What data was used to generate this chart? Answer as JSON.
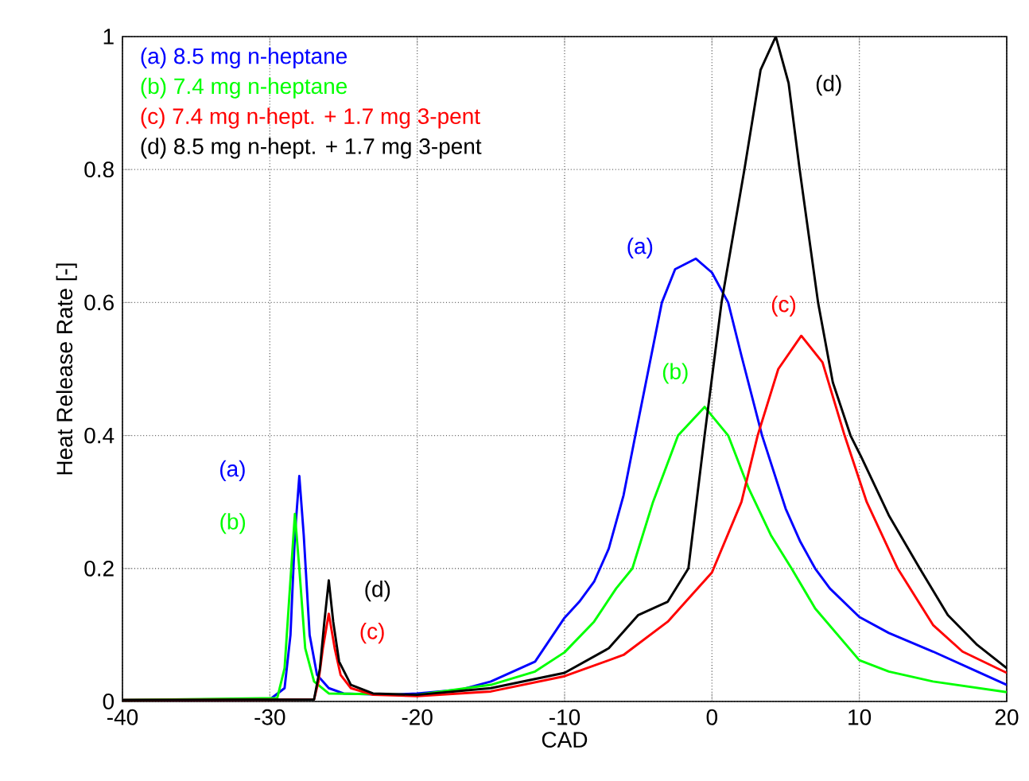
{
  "chart_data": {
    "type": "line",
    "xlabel": "CAD",
    "ylabel": "Heat Release Rate [-]",
    "xlim": [
      -40,
      20
    ],
    "xticks": [
      -40,
      -30,
      -20,
      -10,
      0,
      10,
      20
    ],
    "ylim": [
      0,
      1
    ],
    "yticks": [
      0,
      0.2,
      0.4,
      0.6,
      0.8,
      1
    ],
    "grid": true,
    "legend": "top left",
    "line_style": "solid",
    "marker": "none",
    "series": [
      {
        "name": "(a) 8.5 mg n-heptane",
        "color": "#0000ff",
        "x": [
          -40,
          -30,
          -29,
          -28.6,
          -28.3,
          -28,
          -27.7,
          -27.3,
          -26.8,
          -26,
          -25,
          -22,
          -20,
          -17,
          -15,
          -12,
          -10,
          -9,
          -8,
          -7,
          -6,
          -5.2,
          -4.3,
          -3.4,
          -2.5,
          -1.1,
          0,
          1.1,
          2,
          3.4,
          5,
          6,
          7,
          8,
          10,
          12,
          15,
          18,
          20
        ],
        "values": [
          0.002,
          0.003,
          0.02,
          0.1,
          0.25,
          0.339,
          0.25,
          0.1,
          0.04,
          0.02,
          0.012,
          0.01,
          0.012,
          0.018,
          0.03,
          0.06,
          0.126,
          0.15,
          0.18,
          0.23,
          0.31,
          0.4,
          0.5,
          0.6,
          0.65,
          0.666,
          0.645,
          0.6,
          0.52,
          0.4,
          0.29,
          0.24,
          0.2,
          0.17,
          0.127,
          0.103,
          0.075,
          0.045,
          0.025
        ]
      },
      {
        "name": "(b) 7.4 mg n-heptane",
        "color": "#00ff00",
        "x": [
          -40,
          -29.5,
          -29,
          -28.7,
          -28.3,
          -28,
          -27.6,
          -27,
          -26,
          -20,
          -15,
          -12,
          -10,
          -8,
          -6.5,
          -5.4,
          -4,
          -2.3,
          -0.5,
          1.1,
          2.5,
          4,
          5.4,
          7,
          10,
          12,
          15,
          20
        ],
        "values": [
          0.002,
          0.005,
          0.05,
          0.15,
          0.282,
          0.2,
          0.08,
          0.03,
          0.012,
          0.01,
          0.025,
          0.045,
          0.074,
          0.12,
          0.17,
          0.2,
          0.3,
          0.4,
          0.443,
          0.4,
          0.32,
          0.25,
          0.2,
          0.14,
          0.062,
          0.045,
          0.03,
          0.014
        ]
      },
      {
        "name": "(c) 7.4 mg n-hept. + 1.7 mg 3-pent",
        "color": "#ff0000",
        "x": [
          -40,
          -27,
          -26.7,
          -26.4,
          -26,
          -25.6,
          -25.2,
          -24.5,
          -23,
          -20,
          -15,
          -10,
          -6,
          -3,
          0,
          2,
          3.1,
          4.5,
          6.06,
          7.5,
          9,
          10.5,
          12.6,
          15,
          17,
          20
        ],
        "values": [
          0.002,
          0.003,
          0.03,
          0.08,
          0.132,
          0.08,
          0.04,
          0.02,
          0.01,
          0.008,
          0.015,
          0.038,
          0.07,
          0.12,
          0.194,
          0.3,
          0.4,
          0.5,
          0.55,
          0.51,
          0.4,
          0.3,
          0.2,
          0.115,
          0.075,
          0.043
        ]
      },
      {
        "name": "(d) 8.5 mg n-hept. + 1.7 mg 3-pent",
        "color": "#000000",
        "x": [
          -40,
          -27,
          -26.6,
          -26.3,
          -26,
          -25.7,
          -25.3,
          -24.5,
          -23,
          -20,
          -15,
          -10,
          -7,
          -5,
          -3,
          -1.6,
          -0.5,
          0.65,
          2.2,
          3.3,
          4.33,
          5.2,
          5.95,
          7.2,
          8.2,
          9.4,
          10.1,
          12,
          14.1,
          16,
          18,
          20
        ],
        "values": [
          0.002,
          0.003,
          0.05,
          0.12,
          0.182,
          0.12,
          0.06,
          0.025,
          0.012,
          0.01,
          0.02,
          0.043,
          0.08,
          0.13,
          0.15,
          0.2,
          0.4,
          0.6,
          0.8,
          0.95,
          1.0,
          0.93,
          0.8,
          0.6,
          0.48,
          0.4,
          0.369,
          0.28,
          0.2,
          0.13,
          0.085,
          0.05
        ]
      }
    ],
    "annotations": [
      {
        "text": "(a)",
        "x": -28,
        "y": 0.339
      },
      {
        "text": "(b)",
        "x": -28.3,
        "y": 0.282
      },
      {
        "text": "(d)",
        "x": -26,
        "y": 0.182
      },
      {
        "text": "(c)",
        "x": -26,
        "y": 0.132
      },
      {
        "text": "(a)",
        "x": -1.1,
        "y": 0.666
      },
      {
        "text": "(b)",
        "x": -0.5,
        "y": 0.443
      },
      {
        "text": "(c)",
        "x": 6.06,
        "y": 0.55
      },
      {
        "text": "(d)",
        "x": 4.33,
        "y": 1.0
      }
    ]
  }
}
